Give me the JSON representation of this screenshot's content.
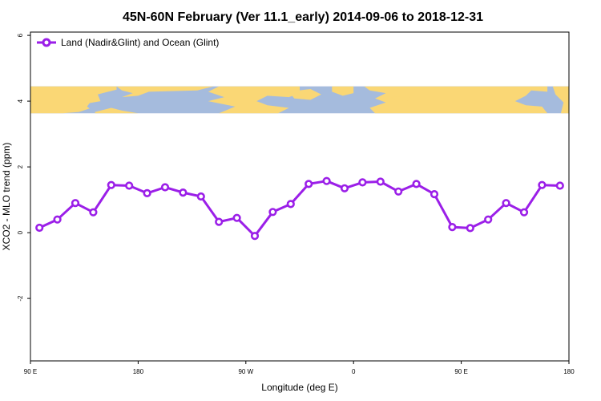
{
  "chart_data": {
    "type": "line",
    "title": "45N-60N February (Ver 11.1_early)   2014-09-06 to 2018-12-31",
    "xlabel": "Longitude (deg E)",
    "ylabel": "XCO2 - MLO trend (ppm)",
    "x_ticks": [
      {
        "value": 90,
        "label": "90 E"
      },
      {
        "value": 180,
        "label": "180"
      },
      {
        "value": 270,
        "label": "90 W"
      },
      {
        "value": 360,
        "label": "0"
      },
      {
        "value": 450,
        "label": "90 E"
      },
      {
        "value": 540,
        "label": "180"
      }
    ],
    "y_ticks": [
      -2,
      0,
      2,
      4,
      6
    ],
    "xlim": [
      90,
      540
    ],
    "ylim": [
      -3.9,
      6.1
    ],
    "grid": false,
    "legend_position": "top-left",
    "colors": {
      "series": "#9b1fe8",
      "land": "#fad775",
      "ocean": "#a5bbdd"
    },
    "map_band": {
      "y_range": [
        3.63,
        4.45
      ]
    },
    "series": [
      {
        "name": "Land (Nadir&Glint) and Ocean (Glint)",
        "x": [
          97.5,
          112.5,
          127.5,
          142.5,
          157.5,
          172.5,
          187.5,
          202.5,
          217.5,
          232.5,
          247.5,
          262.5,
          277.5,
          292.5,
          307.5,
          322.5,
          337.5,
          352.5,
          367.5,
          382.5,
          397.5,
          412.5,
          427.5,
          442.5,
          457.5,
          472.5,
          487.5,
          502.5,
          517.5,
          532.5
        ],
        "values": [
          0.15,
          0.4,
          0.9,
          0.62,
          1.45,
          1.43,
          1.2,
          1.38,
          1.22,
          1.1,
          0.33,
          0.45,
          -0.1,
          0.63,
          0.87,
          1.48,
          1.57,
          1.35,
          1.53,
          1.55,
          1.25,
          1.48,
          1.17,
          0.17,
          0.14,
          0.4,
          0.9,
          0.62,
          1.45,
          1.43
        ]
      }
    ]
  }
}
